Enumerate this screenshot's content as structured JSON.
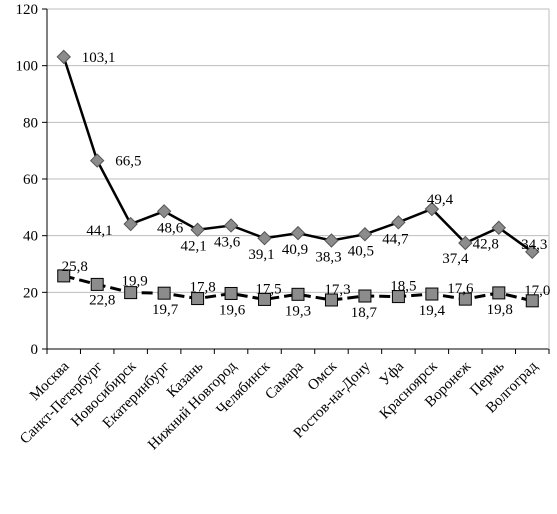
{
  "chart_data": {
    "type": "line",
    "categories": [
      "Москва",
      "Санкт-Петербург",
      "Новосибирск",
      "Екатеринбург",
      "Казань",
      "Нижний Новгород",
      "Челябинск",
      "Самара",
      "Омск",
      "Ростов-на-Дону",
      "Уфа",
      "Красноярск",
      "Воронеж",
      "Пермь",
      "Волгоград"
    ],
    "series": [
      {
        "marker": "diamond",
        "line": "solid",
        "values": [
          103.1,
          66.5,
          44.1,
          48.6,
          42.1,
          43.6,
          39.1,
          40.9,
          38.3,
          40.5,
          44.7,
          49.4,
          37.4,
          42.8,
          34.3
        ],
        "labels": [
          "103,1",
          "66,5",
          "44,1",
          "48,6",
          "42,1",
          "43,6",
          "39,1",
          "40,9",
          "38,3",
          "40,5",
          "44,7",
          "49,4",
          "37,4",
          "42,8",
          "34,3"
        ]
      },
      {
        "marker": "square",
        "line": "dashed",
        "values": [
          25.8,
          22.8,
          19.9,
          19.7,
          17.8,
          19.6,
          17.5,
          19.3,
          17.3,
          18.7,
          18.5,
          19.4,
          17.6,
          19.8,
          17.0
        ],
        "labels": [
          "25,8",
          "22,8",
          "19,9",
          "19,7",
          "17,8",
          "19,6",
          "17,5",
          "19,3",
          "17,3",
          "18,7",
          "18,5",
          "19,4",
          "17,6",
          "19,8",
          "17,0"
        ]
      }
    ],
    "yticks": [
      "0",
      "20",
      "40",
      "60",
      "80",
      "100",
      "120"
    ],
    "ylim": [
      0,
      120
    ],
    "grid": true,
    "colors": {
      "line": "#000000",
      "marker_fill": "#8c8c8c",
      "grid": "#bdbdbd"
    }
  }
}
